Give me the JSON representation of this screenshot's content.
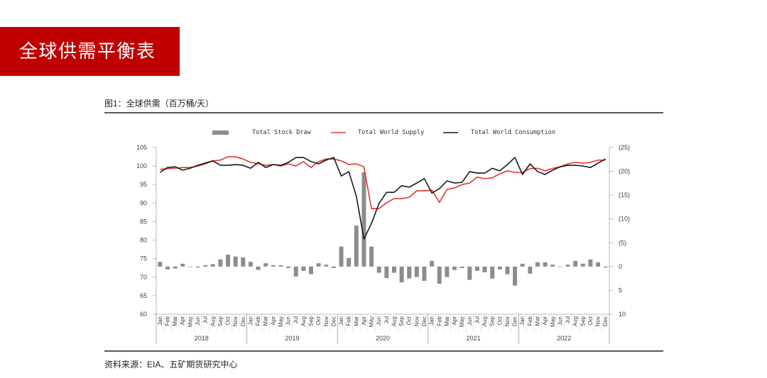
{
  "slide_title": "全球供需平衡表",
  "figure_caption": "图1：全球供需（百万桶/天）",
  "source": "资料来源：EIA、五矿期货研究中心",
  "colors": {
    "banner": "#c00000",
    "banner_text": "#ffffff",
    "rule": "#595959",
    "axis": "#a6a6a6",
    "text": "#404040"
  },
  "chart_data": {
    "type": "line",
    "legend_position": "top-center",
    "grid": false,
    "x_axis": {
      "months": [
        "Jan",
        "Feb",
        "Mar",
        "Apr",
        "May",
        "Jun",
        "Jul",
        "Aug",
        "Sep",
        "Oct",
        "Nov",
        "Dec"
      ],
      "years": [
        "2018",
        "2019",
        "2020",
        "2021",
        "2022"
      ]
    },
    "y_left": {
      "min": 60,
      "max": 105,
      "ticks": [
        105,
        100,
        95,
        90,
        85,
        80,
        75,
        70,
        65,
        60
      ]
    },
    "y_right": {
      "min": -25,
      "max": 10,
      "inverted": true,
      "tick_values": [
        -25,
        -20,
        -15,
        -10,
        -5,
        0,
        5,
        10
      ],
      "tick_labels": [
        "(25)",
        "(20)",
        "(15)",
        "(10)",
        "(5)",
        "0",
        "5",
        "10"
      ],
      "negative_label_color": "#d42a1e"
    },
    "series": [
      {
        "name": "Total Stock Draw",
        "type": "bar",
        "axis": "right",
        "color": "#8c8c8c",
        "values": [
          -1.0,
          0.6,
          0.4,
          -0.6,
          0.1,
          0.2,
          -0.3,
          -0.5,
          -1.5,
          -2.5,
          -2.1,
          -1.9,
          -1.0,
          0.7,
          -0.7,
          -0.3,
          -0.3,
          0.3,
          2.1,
          0.9,
          1.6,
          -0.7,
          -0.4,
          0.3,
          -4.2,
          -1.8,
          -8.6,
          -19.8,
          -4.2,
          1.3,
          2.4,
          1.3,
          3.3,
          2.5,
          2.2,
          3.0,
          -1.2,
          3.6,
          2.2,
          0.7,
          0.3,
          2.8,
          0.9,
          1.2,
          2.5,
          0.6,
          1.6,
          4.0,
          -0.6,
          1.5,
          -0.9,
          -0.9,
          -0.4,
          0.1,
          -0.4,
          -1.2,
          -0.6,
          -1.5,
          -0.9,
          0.2
        ]
      },
      {
        "name": "Total World Supply",
        "type": "line",
        "axis": "left",
        "color": "#e0382b",
        "values": [
          99.1,
          99.3,
          99.4,
          99.6,
          99.6,
          100.0,
          100.6,
          101.4,
          101.6,
          102.5,
          102.5,
          101.9,
          101.0,
          100.6,
          100.2,
          100.4,
          100.0,
          100.6,
          100.0,
          101.2,
          99.6,
          101.2,
          101.9,
          101.9,
          101.4,
          100.4,
          100.6,
          99.8,
          88.5,
          88.5,
          90.1,
          91.2,
          91.2,
          91.6,
          93.3,
          93.3,
          93.5,
          90.2,
          93.7,
          94.1,
          95.0,
          95.4,
          97.0,
          96.6,
          96.8,
          97.9,
          98.7,
          98.3,
          98.3,
          99.3,
          99.4,
          98.7,
          99.4,
          99.8,
          100.6,
          101.0,
          100.8,
          101.0,
          101.6,
          101.6
        ]
      },
      {
        "name": "Total World Consumption",
        "type": "line",
        "axis": "left",
        "color": "#1a1a1a",
        "values": [
          98.3,
          99.6,
          99.8,
          98.9,
          99.4,
          100.2,
          100.8,
          101.4,
          100.2,
          100.2,
          100.4,
          100.2,
          99.4,
          101.0,
          99.6,
          100.4,
          100.2,
          101.0,
          102.3,
          102.3,
          101.2,
          100.6,
          101.6,
          102.3,
          97.3,
          98.5,
          91.8,
          80.3,
          84.5,
          89.9,
          92.9,
          92.9,
          94.7,
          94.3,
          95.4,
          96.6,
          92.7,
          93.9,
          96.0,
          95.4,
          95.6,
          98.5,
          98.1,
          98.1,
          99.4,
          98.7,
          100.4,
          102.3,
          97.7,
          100.6,
          98.5,
          97.7,
          98.9,
          99.8,
          100.2,
          100.2,
          100.0,
          99.6,
          100.8,
          101.9
        ]
      }
    ]
  }
}
